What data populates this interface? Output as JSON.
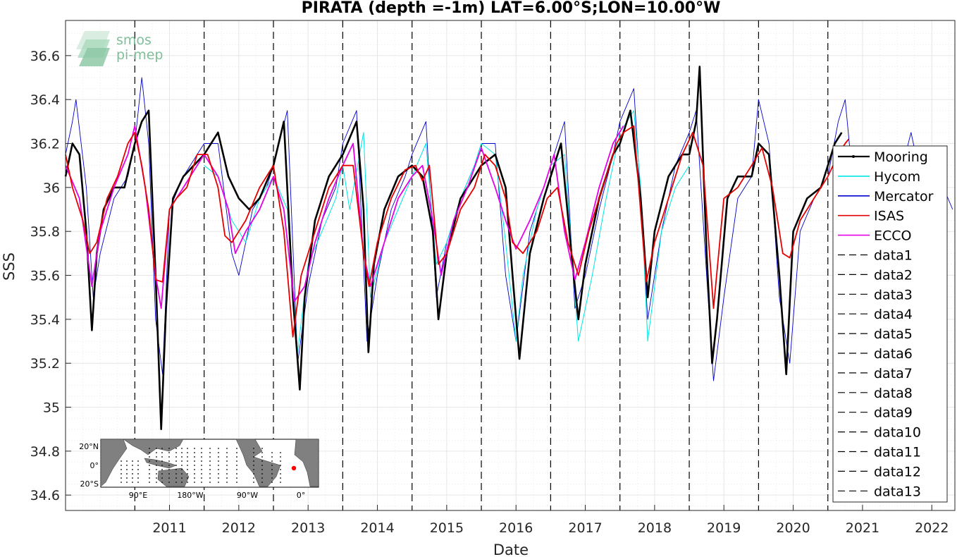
{
  "chart_data": {
    "type": "line",
    "title": "PIRATA (depth =-1m) LAT=6.00°S;LON=10.00°W",
    "xlabel": "Date",
    "ylabel": "SSS",
    "xlim": [
      "2010-01-01",
      "2022-11-01"
    ],
    "ylim": [
      34.53,
      36.76
    ],
    "x_ticks": [
      "2011",
      "2012",
      "2013",
      "2014",
      "2015",
      "2016",
      "2017",
      "2018",
      "2019",
      "2020",
      "2021",
      "2022"
    ],
    "y_ticks": [
      "34.6",
      "34.8",
      "35",
      "35.2",
      "35.4",
      "35.6",
      "35.8",
      "36",
      "36.2",
      "36.4",
      "36.6"
    ],
    "grid": true,
    "legend_position": "right",
    "series": [
      {
        "name": "Mooring",
        "color": "#000000",
        "x": [
          2010.0,
          2010.1,
          2010.2,
          2010.3,
          2010.38,
          2010.45,
          2010.55,
          2010.7,
          2010.85,
          2011.0,
          2011.1,
          2011.2,
          2011.3,
          2011.38,
          2011.45,
          2011.55,
          2011.7,
          2011.85,
          2012.0,
          2012.2,
          2012.35,
          2012.5,
          2012.65,
          2012.8,
          2013.0,
          2013.15,
          2013.28,
          2013.38,
          2013.45,
          2013.6,
          2013.8,
          2014.0,
          2014.2,
          2014.3,
          2014.37,
          2014.45,
          2014.6,
          2014.8,
          2015.0,
          2015.15,
          2015.3,
          2015.38,
          2015.5,
          2015.7,
          2015.9,
          2016.0,
          2016.2,
          2016.35,
          2016.45,
          2016.55,
          2016.7,
          2016.9,
          2017.0,
          2017.15,
          2017.3,
          2017.4,
          2017.5,
          2017.7,
          2017.9,
          2018.0,
          2018.15,
          2018.3,
          2018.4,
          2018.5,
          2018.7,
          2018.9,
          2019.0,
          2019.1,
          2019.15,
          2019.25,
          2019.33,
          2019.4,
          2019.55,
          2019.7,
          2019.9,
          2020.0,
          2020.15,
          2020.3,
          2020.4,
          2020.5,
          2020.7,
          2020.9,
          2021.0,
          2021.1,
          2021.2
        ],
        "y": [
          36.05,
          36.2,
          36.15,
          35.8,
          35.35,
          35.7,
          35.9,
          36.0,
          36.0,
          36.2,
          36.3,
          36.35,
          35.6,
          34.9,
          35.45,
          35.95,
          36.05,
          36.1,
          36.15,
          36.25,
          36.05,
          35.95,
          35.9,
          35.95,
          36.1,
          36.3,
          35.5,
          35.08,
          35.5,
          35.85,
          36.05,
          36.15,
          36.3,
          35.9,
          35.25,
          35.65,
          35.9,
          36.05,
          36.1,
          36.05,
          35.8,
          35.4,
          35.7,
          35.95,
          36.05,
          36.1,
          36.15,
          36.0,
          35.6,
          35.22,
          35.7,
          35.95,
          36.05,
          36.2,
          35.7,
          35.4,
          35.65,
          35.95,
          36.15,
          36.2,
          36.35,
          35.95,
          35.5,
          35.8,
          36.05,
          36.15,
          36.15,
          36.3,
          36.55,
          35.7,
          35.2,
          35.4,
          35.95,
          36.05,
          36.05,
          36.2,
          36.15,
          35.6,
          35.15,
          35.8,
          35.95,
          36.0,
          36.1,
          36.2,
          36.25
        ]
      },
      {
        "name": "Hycom",
        "color": "#00e5e5",
        "x": [
          2012.0,
          2012.2,
          2012.4,
          2012.6,
          2012.8,
          2013.0,
          2013.2,
          2013.35,
          2013.5,
          2013.7,
          2013.9,
          2014.0,
          2014.1,
          2014.3,
          2014.4,
          2014.6,
          2014.8,
          2015.0,
          2015.2,
          2015.35,
          2015.5,
          2015.7,
          2015.9,
          2016.0,
          2016.2,
          2016.35,
          2016.5,
          2016.6,
          2016.8,
          2017.0,
          2017.2,
          2017.4,
          2017.6,
          2017.8,
          2018.0,
          2018.2,
          2018.3,
          2018.4,
          2018.6,
          2018.8,
          2019.0
        ],
        "y": [
          36.1,
          36.05,
          35.85,
          35.75,
          35.95,
          36.05,
          35.9,
          35.25,
          35.65,
          35.8,
          35.95,
          36.1,
          35.9,
          36.25,
          35.5,
          35.75,
          35.9,
          36.05,
          36.2,
          35.65,
          35.75,
          35.95,
          36.1,
          36.2,
          36.15,
          35.75,
          35.3,
          35.6,
          35.9,
          36.1,
          36.15,
          35.3,
          35.6,
          35.95,
          36.25,
          36.35,
          36.0,
          35.3,
          35.8,
          36.0,
          36.1
        ]
      },
      {
        "name": "Mercator",
        "color": "#0000cc",
        "x": [
          2010.0,
          2010.1,
          2010.15,
          2010.3,
          2010.4,
          2010.5,
          2010.7,
          2010.9,
          2011.0,
          2011.1,
          2011.2,
          2011.3,
          2011.4,
          2011.5,
          2011.7,
          2011.9,
          2012.0,
          2012.2,
          2012.4,
          2012.5,
          2012.7,
          2012.9,
          2013.0,
          2013.2,
          2013.35,
          2013.5,
          2013.7,
          2013.9,
          2014.0,
          2014.2,
          2014.35,
          2014.5,
          2014.7,
          2014.9,
          2015.0,
          2015.2,
          2015.35,
          2015.5,
          2015.7,
          2015.9,
          2016.0,
          2016.2,
          2016.35,
          2016.5,
          2016.7,
          2016.9,
          2017.0,
          2017.2,
          2017.35,
          2017.5,
          2017.7,
          2017.9,
          2018.0,
          2018.2,
          2018.3,
          2018.4,
          2018.6,
          2018.8,
          2019.0,
          2019.1,
          2019.25,
          2019.35,
          2019.5,
          2019.7,
          2019.9,
          2020.0,
          2020.15,
          2020.3,
          2020.45,
          2020.6,
          2020.8,
          2021.0,
          2021.15,
          2021.25,
          2021.4,
          2021.6,
          2021.8,
          2021.9,
          2022.0,
          2022.2,
          2022.4,
          2022.6,
          2022.8
        ],
        "y": [
          36.15,
          36.3,
          36.4,
          36.0,
          35.5,
          35.7,
          35.95,
          36.05,
          36.2,
          36.5,
          36.2,
          35.4,
          35.15,
          35.9,
          36.05,
          36.15,
          36.2,
          36.2,
          35.7,
          35.6,
          35.9,
          36.0,
          36.1,
          36.35,
          35.2,
          35.55,
          35.85,
          36.0,
          36.2,
          36.35,
          35.3,
          35.6,
          35.9,
          36.05,
          36.15,
          36.3,
          35.5,
          35.75,
          35.95,
          36.1,
          36.2,
          36.2,
          35.6,
          35.3,
          35.8,
          36.0,
          36.1,
          36.3,
          35.45,
          35.6,
          35.9,
          36.15,
          36.3,
          36.45,
          35.95,
          35.4,
          35.8,
          36.1,
          36.25,
          36.35,
          35.6,
          35.12,
          35.5,
          35.95,
          36.05,
          36.4,
          36.2,
          35.5,
          35.2,
          35.8,
          35.95,
          36.05,
          36.3,
          36.4,
          35.9,
          35.95,
          35.7,
          35.9,
          36.0,
          36.25,
          35.95,
          36.05,
          35.9
        ]
      },
      {
        "name": "ISAS",
        "color": "#e60000",
        "x": [
          2010.0,
          2010.1,
          2010.25,
          2010.35,
          2010.45,
          2010.6,
          2010.75,
          2010.9,
          2011.0,
          2011.1,
          2011.2,
          2011.3,
          2011.4,
          2011.5,
          2011.6,
          2011.75,
          2011.9,
          2012.05,
          2012.2,
          2012.3,
          2012.4,
          2012.6,
          2012.8,
          2013.0,
          2013.15,
          2013.28,
          2013.4,
          2013.6,
          2013.8,
          2014.0,
          2014.15,
          2014.3,
          2014.38,
          2014.5,
          2014.7,
          2014.9,
          2015.05,
          2015.15,
          2015.25,
          2015.38,
          2015.5,
          2015.7,
          2015.9,
          2016.05,
          2016.2,
          2016.35,
          2016.45,
          2016.6,
          2016.8,
          2016.95,
          2017.1,
          2017.25,
          2017.4,
          2017.55,
          2017.75,
          2017.95,
          2018.05,
          2018.2,
          2018.38,
          2018.5,
          2018.7,
          2018.9,
          2019.05,
          2019.2,
          2019.35,
          2019.5,
          2019.7,
          2019.9,
          2020.05,
          2020.2,
          2020.35,
          2020.45,
          2020.6,
          2020.8,
          2021.0,
          2021.15,
          2021.25,
          2021.3
        ],
        "y": [
          36.15,
          36.0,
          35.85,
          35.7,
          35.75,
          35.95,
          36.05,
          36.2,
          36.25,
          36.1,
          35.9,
          35.58,
          35.57,
          35.9,
          35.95,
          36.0,
          36.15,
          36.15,
          36.0,
          35.78,
          35.75,
          35.85,
          36.0,
          36.1,
          35.8,
          35.32,
          35.6,
          35.8,
          36.0,
          36.1,
          36.1,
          35.7,
          35.55,
          35.75,
          35.95,
          36.08,
          36.1,
          36.03,
          36.1,
          35.65,
          35.7,
          35.9,
          36.0,
          36.15,
          36.1,
          35.95,
          35.75,
          35.7,
          35.8,
          35.95,
          36.0,
          35.75,
          35.6,
          35.8,
          36.0,
          36.2,
          36.25,
          36.28,
          35.57,
          35.75,
          35.95,
          36.15,
          36.25,
          36.1,
          35.45,
          35.95,
          36.0,
          36.1,
          36.18,
          36.0,
          35.7,
          35.68,
          35.85,
          35.95,
          36.05,
          36.15,
          36.2,
          36.22
        ]
      },
      {
        "name": "ECCO",
        "color": "#e600e6",
        "x": [
          2010.0,
          2010.2,
          2010.38,
          2010.5,
          2010.7,
          2010.9,
          2011.0,
          2011.15,
          2011.3,
          2011.38,
          2011.5,
          2011.7,
          2011.9,
          2012.0,
          2012.2,
          2012.35,
          2012.45,
          2012.6,
          2012.8,
          2013.0,
          2013.15,
          2013.3,
          2013.45,
          2013.6,
          2013.8,
          2014.0,
          2014.15,
          2014.3,
          2014.4,
          2014.6,
          2014.8,
          2015.0,
          2015.15,
          2015.3,
          2015.42,
          2015.6,
          2015.8,
          2016.0,
          2016.2,
          2016.35,
          2016.5,
          2016.7,
          2016.9,
          2017.05,
          2017.2,
          2017.35,
          2017.5,
          2017.7,
          2017.9,
          2018.05
        ],
        "y": [
          36.1,
          35.95,
          35.55,
          35.8,
          36.0,
          36.15,
          36.28,
          36.0,
          35.6,
          35.45,
          35.9,
          36.0,
          36.1,
          36.15,
          36.05,
          35.9,
          35.7,
          35.8,
          35.9,
          36.05,
          35.9,
          35.48,
          35.55,
          35.75,
          35.95,
          36.1,
          36.2,
          35.7,
          35.55,
          35.75,
          35.95,
          36.05,
          36.1,
          35.85,
          35.6,
          35.85,
          36.0,
          36.18,
          36.0,
          35.85,
          35.72,
          35.85,
          36.0,
          36.15,
          35.8,
          35.58,
          35.75,
          36.0,
          36.2,
          36.28
        ]
      }
    ]
  },
  "legend": [
    "Mooring",
    "Hycom",
    "Mercator",
    "ISAS",
    "ECCO",
    "data1",
    "data2",
    "data3",
    "data4",
    "data5",
    "data6",
    "data7",
    "data8",
    "data9",
    "data10",
    "data11",
    "data12",
    "data13"
  ],
  "year_markers": [
    "2011-01-01",
    "2012-01-01",
    "2013-01-01",
    "2014-01-01",
    "2015-01-01",
    "2016-01-01",
    "2017-01-01",
    "2018-01-01",
    "2019-01-01",
    "2020-01-01",
    "2021-01-01"
  ],
  "logo": {
    "line1": "smos",
    "line2": "pi-mep"
  },
  "inset_map": {
    "y_ticks": [
      "20°N",
      "0°",
      "20°S"
    ],
    "x_ticks": [
      "90°E",
      "180°W",
      "90°W",
      "0°"
    ],
    "marker_color": "#ff0000"
  }
}
